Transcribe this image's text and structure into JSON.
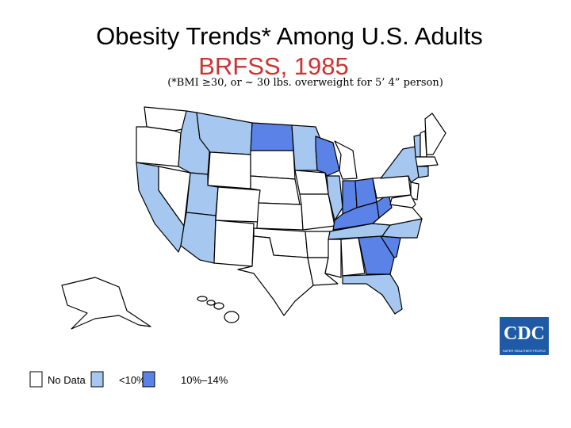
{
  "header": {
    "title": "Obesity Trends* Among U.S. Adults",
    "subtitle": "BRFSS, 1985",
    "note": "(*BMI ≥30, or ~ 30 lbs. overweight for 5’ 4” person)"
  },
  "legend": [
    {
      "label": "No Data",
      "color": "#ffffff"
    },
    {
      "label": "<10%",
      "color": "#a6c8f0"
    },
    {
      "label": "10%–14%",
      "color": "#5b82e6"
    }
  ],
  "logo": {
    "text": "CDC",
    "tagline": "SAFER·HEALTHIER·PEOPLE"
  }
}
